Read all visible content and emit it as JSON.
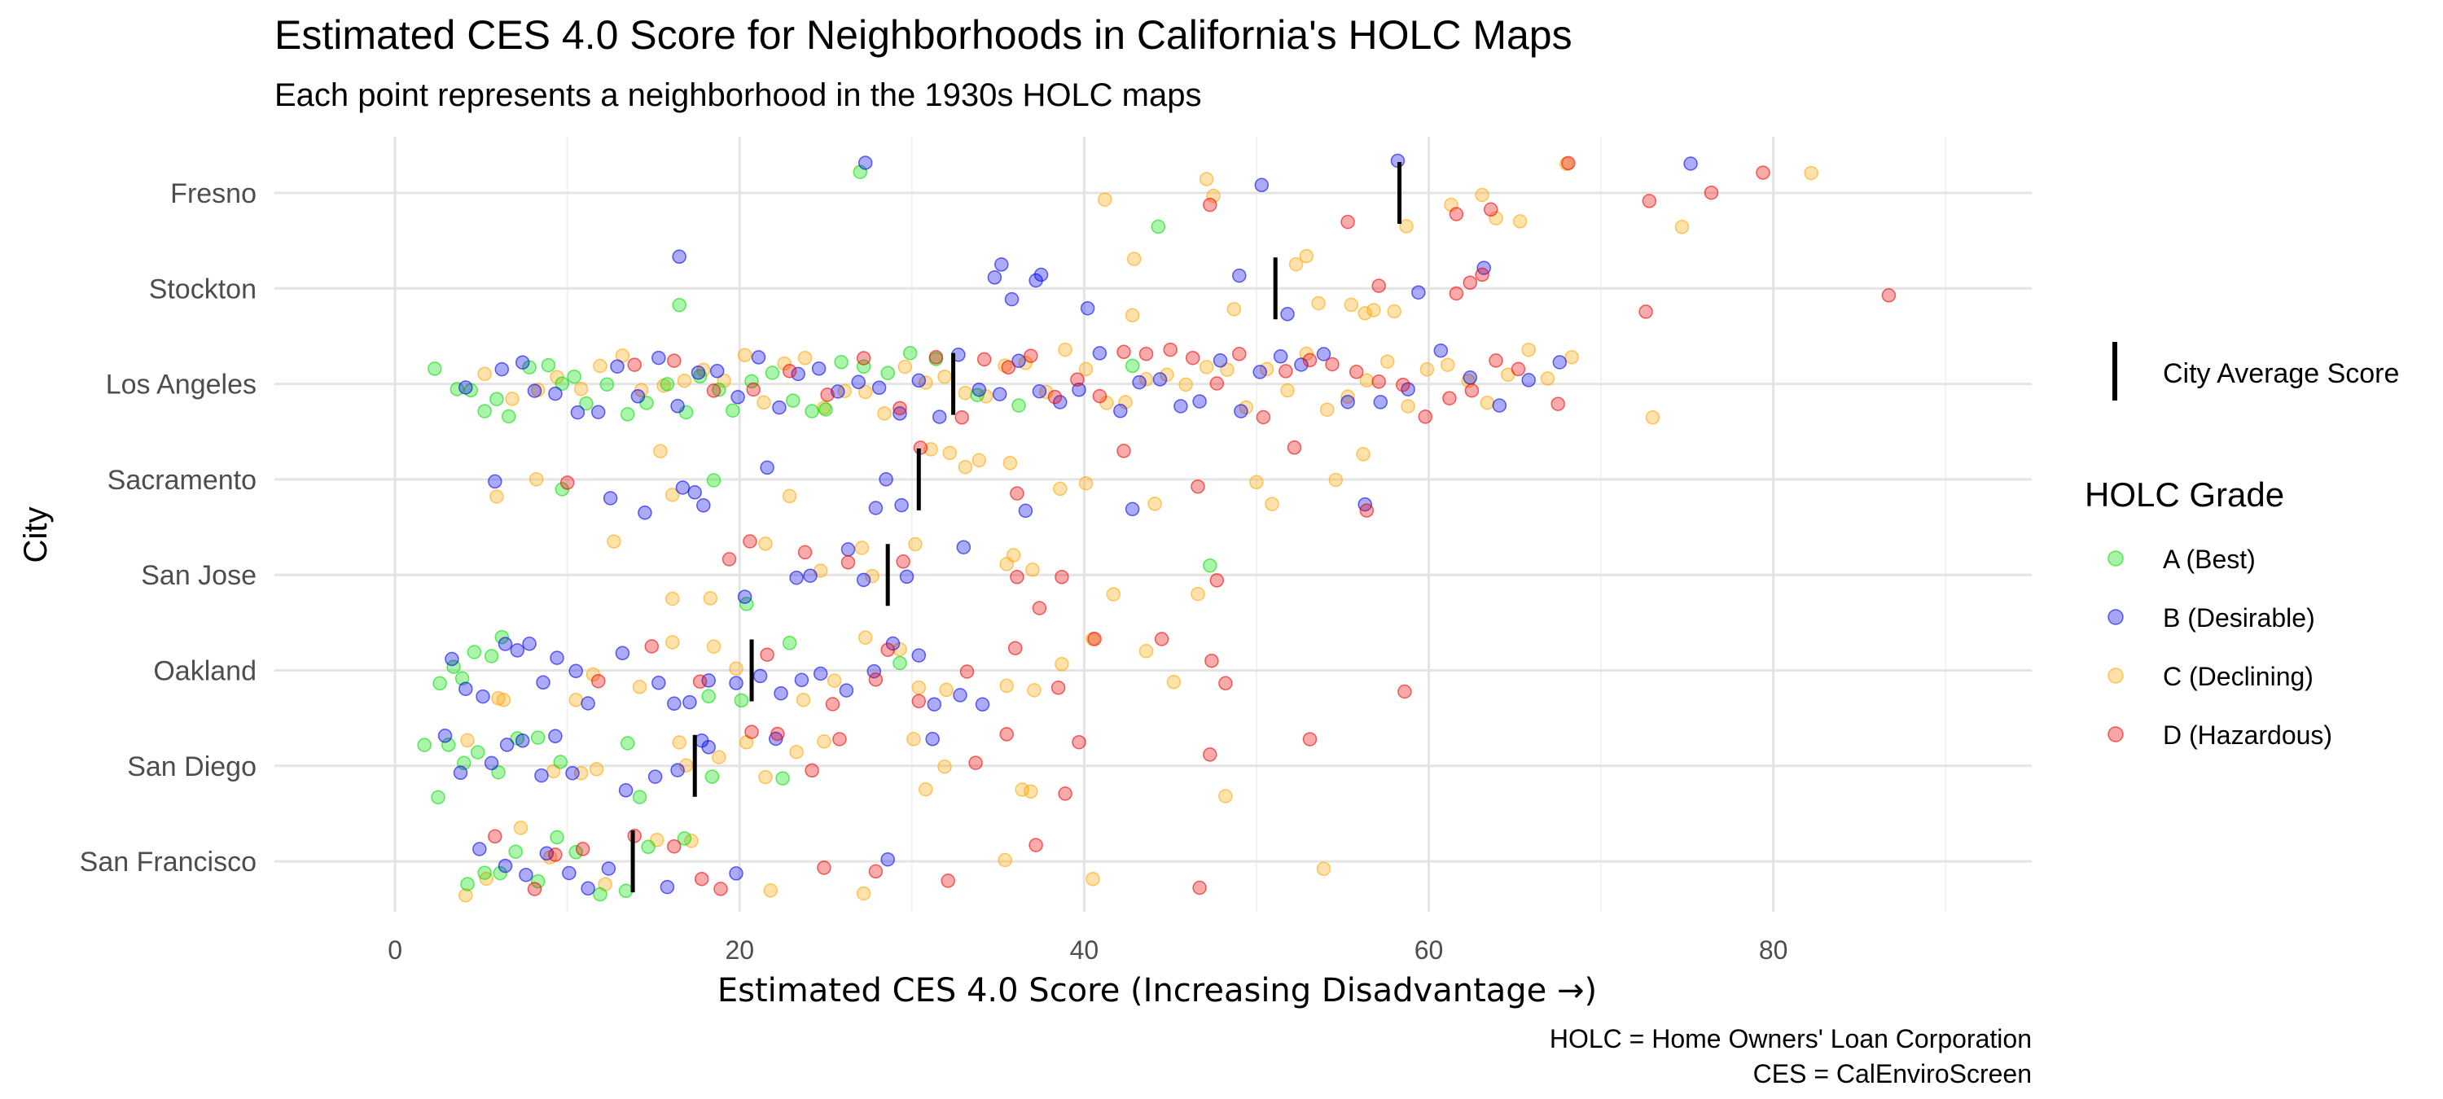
{
  "chart_data": {
    "type": "scatter",
    "title": "Estimated CES 4.0 Score for Neighborhoods in California's HOLC Maps",
    "subtitle": "Each point represents a neighborhood in the 1930s HOLC maps",
    "xlabel": "Estimated CES 4.0 Score (Increasing Disadvantage →)",
    "ylabel": "City",
    "xlim": [
      -7,
      95
    ],
    "xticks": [
      0,
      20,
      40,
      60,
      80
    ],
    "grid": true,
    "caption": [
      "HOLC = Home Owners' Loan Corporation",
      "CES = CalEnviroScreen"
    ],
    "cities": [
      "Fresno",
      "Stockton",
      "Los Angeles",
      "Sacramento",
      "San Jose",
      "Oakland",
      "San Diego",
      "San Francisco"
    ],
    "legend": {
      "average_label": "City Average Score",
      "grade_title": "HOLC Grade",
      "placement": "right",
      "grades": [
        {
          "key": "A",
          "label": "A (Best)",
          "color": "#00dd00"
        },
        {
          "key": "B",
          "label": "B (Desirable)",
          "color": "#0000ee"
        },
        {
          "key": "C",
          "label": "C (Declining)",
          "color": "#ffa500"
        },
        {
          "key": "D",
          "label": "D (Hazardous)",
          "color": "#ee0000"
        }
      ]
    },
    "city_averages": {
      "Fresno": 58.3,
      "Stockton": 51.1,
      "Los Angeles": 32.4,
      "Sacramento": 30.4,
      "San Jose": 28.6,
      "Oakland": 20.7,
      "San Diego": 17.4,
      "San Francisco": 13.8
    },
    "points": {
      "Fresno": {
        "A": [
          27.0,
          44.3
        ],
        "B": [
          27.3,
          50.3,
          58.2,
          75.2
        ],
        "C": [
          41.2,
          47.1,
          47.5,
          58.7,
          61.3,
          63.1,
          63.9,
          65.3,
          68.0,
          74.7,
          82.2
        ],
        "D": [
          47.3,
          55.3,
          61.6,
          63.6,
          68.1,
          72.8,
          76.4,
          79.4
        ]
      },
      "Stockton": {
        "A": [
          16.5
        ],
        "B": [
          16.5,
          34.8,
          35.2,
          35.8,
          37.2,
          37.5,
          40.2,
          49.0,
          51.8,
          59.4,
          63.2
        ],
        "C": [
          42.8,
          42.9,
          48.7,
          52.3,
          52.9,
          53.6,
          55.5,
          56.3,
          56.8,
          58.0
        ],
        "D": [
          57.1,
          61.6,
          62.4,
          63.1,
          72.6,
          86.7
        ]
      },
      "Los Angeles": {
        "A": [
          2.3,
          3.6,
          4.4,
          5.2,
          5.9,
          6.6,
          7.8,
          8.9,
          9.7,
          10.4,
          11.1,
          12.3,
          13.5,
          14.6,
          15.8,
          16.9,
          17.7,
          18.8,
          19.6,
          20.7,
          21.9,
          23.1,
          24.2,
          25.0,
          25.9,
          27.2,
          28.6,
          29.9,
          31.4,
          33.8,
          36.2,
          42.8
        ],
        "B": [
          4.1,
          6.2,
          7.4,
          8.1,
          9.3,
          10.6,
          11.8,
          12.9,
          14.1,
          15.3,
          16.4,
          17.6,
          18.7,
          19.9,
          21.1,
          22.3,
          23.4,
          24.6,
          25.7,
          26.9,
          28.1,
          29.3,
          30.4,
          31.6,
          32.7,
          33.9,
          35.1,
          36.2,
          37.4,
          38.6,
          39.7,
          40.9,
          42.1,
          43.2,
          44.4,
          45.6,
          46.7,
          47.9,
          49.1,
          50.2,
          51.4,
          52.6,
          53.9,
          55.3,
          57.2,
          58.8,
          60.7,
          62.4,
          64.1,
          65.8,
          67.6
        ],
        "C": [
          5.2,
          6.8,
          8.3,
          9.4,
          10.8,
          11.9,
          13.2,
          14.3,
          15.6,
          16.8,
          17.9,
          19.1,
          20.3,
          21.4,
          22.6,
          23.8,
          24.9,
          26.1,
          27.3,
          28.4,
          29.6,
          30.8,
          31.9,
          33.1,
          34.3,
          35.4,
          36.6,
          37.8,
          38.9,
          40.1,
          41.3,
          42.4,
          43.6,
          44.8,
          45.9,
          47.1,
          48.3,
          49.4,
          50.6,
          51.8,
          52.9,
          54.1,
          55.3,
          56.4,
          57.6,
          58.8,
          59.9,
          61.1,
          62.3,
          63.4,
          64.6,
          65.8,
          66.9,
          68.3,
          73.0
        ],
        "D": [
          13.9,
          16.2,
          18.5,
          20.8,
          22.9,
          25.1,
          27.2,
          29.3,
          31.4,
          32.9,
          34.2,
          35.6,
          36.9,
          38.3,
          39.6,
          40.9,
          42.3,
          43.6,
          45.0,
          46.3,
          47.7,
          49.0,
          50.4,
          51.7,
          53.1,
          54.4,
          55.8,
          57.1,
          58.5,
          59.8,
          61.2,
          62.5,
          63.9,
          65.2,
          67.5
        ]
      },
      "Sacramento": {
        "A": [
          9.7,
          18.5
        ],
        "B": [
          5.8,
          12.5,
          14.5,
          16.7,
          17.4,
          17.9,
          21.6,
          27.9,
          28.5,
          29.4,
          36.6,
          42.8,
          56.3
        ],
        "C": [
          5.9,
          8.2,
          15.4,
          16.1,
          22.9,
          31.1,
          32.2,
          33.1,
          33.9,
          35.7,
          38.6,
          40.1,
          44.1,
          50.0,
          50.9,
          54.6,
          56.2
        ],
        "D": [
          10.0,
          30.5,
          36.1,
          42.3,
          46.6,
          52.2,
          56.4
        ]
      },
      "San Jose": {
        "A": [
          20.4,
          47.3
        ],
        "B": [
          20.3,
          23.3,
          24.1,
          26.3,
          27.2,
          29.7,
          33.0
        ],
        "C": [
          12.7,
          16.1,
          18.3,
          21.5,
          24.7,
          27.1,
          27.7,
          30.2,
          35.5,
          35.9,
          37.0,
          41.7,
          46.6
        ],
        "D": [
          19.4,
          20.6,
          23.8,
          26.3,
          29.5,
          36.1,
          37.4,
          38.7,
          47.7
        ]
      },
      "Oakland": {
        "A": [
          2.6,
          3.4,
          3.9,
          4.6,
          5.6,
          6.2,
          18.2,
          20.1,
          22.9,
          29.3
        ],
        "B": [
          3.3,
          4.1,
          5.1,
          6.4,
          7.1,
          7.8,
          8.6,
          9.4,
          10.5,
          11.2,
          13.2,
          15.3,
          16.2,
          17.1,
          18.2,
          19.8,
          21.2,
          22.4,
          23.6,
          24.7,
          26.2,
          27.8,
          28.9,
          30.4,
          31.3,
          32.8,
          34.1
        ],
        "C": [
          6.0,
          6.3,
          10.5,
          11.5,
          14.2,
          16.1,
          18.5,
          19.8,
          23.7,
          25.5,
          27.3,
          29.3,
          30.4,
          32.0,
          35.5,
          37.1,
          38.7,
          40.5,
          43.6,
          45.2
        ],
        "D": [
          11.8,
          14.9,
          17.7,
          21.6,
          25.4,
          27.9,
          28.6,
          30.4,
          33.2,
          36.0,
          38.5,
          40.6,
          44.5,
          47.4,
          48.2,
          58.6
        ]
      },
      "San Diego": {
        "A": [
          1.7,
          2.5,
          3.1,
          4.0,
          4.8,
          6.0,
          7.1,
          8.3,
          9.6,
          13.5,
          14.2,
          18.4,
          22.5
        ],
        "B": [
          2.9,
          3.8,
          5.6,
          6.5,
          7.4,
          8.5,
          9.3,
          10.3,
          13.4,
          15.1,
          16.4,
          17.8,
          18.2,
          22.1,
          31.2
        ],
        "C": [
          4.2,
          9.2,
          10.8,
          11.7,
          16.5,
          16.9,
          18.8,
          20.4,
          21.5,
          23.3,
          24.9,
          30.1,
          30.8,
          31.9,
          36.4,
          36.9,
          48.2
        ],
        "D": [
          20.7,
          22.2,
          24.2,
          25.8,
          33.7,
          35.5,
          38.9,
          39.7,
          47.3,
          53.1
        ]
      },
      "San Francisco": {
        "A": [
          4.2,
          5.2,
          6.1,
          7.0,
          8.3,
          9.4,
          10.5,
          11.9,
          13.4,
          14.7,
          16.8
        ],
        "B": [
          4.9,
          6.4,
          7.6,
          8.8,
          10.1,
          11.2,
          12.4,
          15.8,
          19.8,
          28.6
        ],
        "C": [
          4.1,
          5.3,
          7.3,
          9.0,
          12.2,
          15.2,
          17.2,
          21.8,
          27.2,
          35.4,
          40.5,
          53.9
        ],
        "D": [
          5.8,
          8.1,
          9.3,
          10.9,
          13.9,
          16.2,
          17.8,
          18.9,
          24.9,
          27.9,
          32.1,
          37.2,
          46.7
        ]
      }
    }
  }
}
